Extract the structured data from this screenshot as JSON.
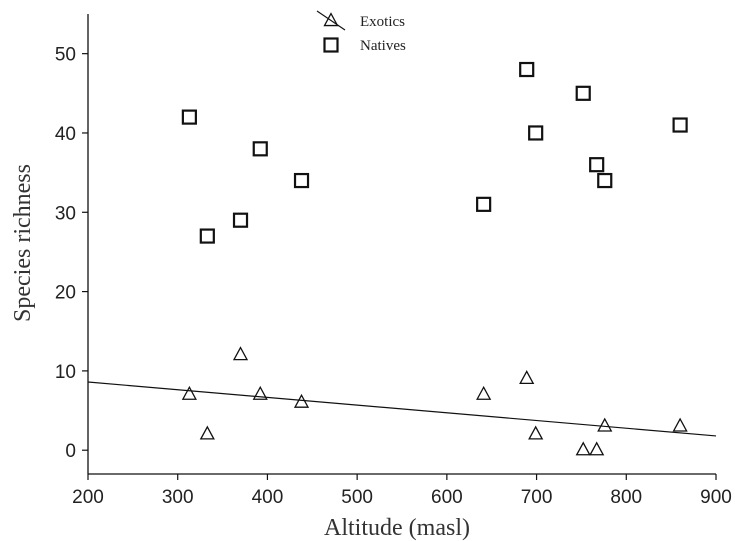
{
  "chart_data": {
    "type": "scatter",
    "xlabel": "Altitude (masl)",
    "ylabel": "Species richness",
    "xlim": [
      200,
      900
    ],
    "ylim": [
      -3,
      55
    ],
    "xticks": [
      200,
      300,
      400,
      500,
      600,
      700,
      800,
      900
    ],
    "yticks": [
      0,
      10,
      20,
      30,
      40,
      50
    ],
    "grid": false,
    "legend": "top-center",
    "series": [
      {
        "name": "Exotics",
        "marker": "triangle",
        "color": "#1a1a1a",
        "fit_line": {
          "x": [
            200,
            900
          ],
          "y": [
            8.6,
            1.8
          ]
        },
        "points": [
          {
            "x": 313,
            "y": 7
          },
          {
            "x": 333,
            "y": 2
          },
          {
            "x": 370,
            "y": 12
          },
          {
            "x": 392,
            "y": 7
          },
          {
            "x": 438,
            "y": 6
          },
          {
            "x": 641,
            "y": 7
          },
          {
            "x": 689,
            "y": 9
          },
          {
            "x": 699,
            "y": 2
          },
          {
            "x": 752,
            "y": 0
          },
          {
            "x": 767,
            "y": 0
          },
          {
            "x": 776,
            "y": 3
          },
          {
            "x": 860,
            "y": 3
          }
        ]
      },
      {
        "name": "Natives",
        "marker": "square",
        "color": "#1a1a1a",
        "points": [
          {
            "x": 313,
            "y": 42
          },
          {
            "x": 333,
            "y": 27
          },
          {
            "x": 370,
            "y": 29
          },
          {
            "x": 392,
            "y": 38
          },
          {
            "x": 438,
            "y": 34
          },
          {
            "x": 641,
            "y": 31
          },
          {
            "x": 689,
            "y": 48
          },
          {
            "x": 699,
            "y": 40
          },
          {
            "x": 752,
            "y": 45
          },
          {
            "x": 767,
            "y": 36
          },
          {
            "x": 776,
            "y": 34
          },
          {
            "x": 860,
            "y": 41
          }
        ]
      }
    ]
  }
}
